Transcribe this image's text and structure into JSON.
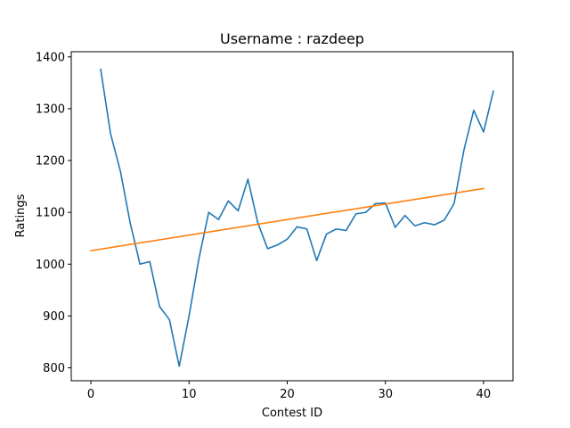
{
  "chart_data": {
    "type": "line",
    "title": "Username : razdeep",
    "xlabel": "Contest ID",
    "ylabel": "Ratings",
    "xlim": [
      -2,
      43
    ],
    "ylim": [
      775,
      1410
    ],
    "xticks": [
      0,
      10,
      20,
      30,
      40
    ],
    "yticks": [
      800,
      900,
      1000,
      1100,
      1200,
      1300,
      1400
    ],
    "grid": false,
    "series": [
      {
        "color": "#1f77b4",
        "x": [
          1,
          2,
          3,
          4,
          5,
          6,
          7,
          8,
          9,
          10,
          11,
          12,
          13,
          14,
          15,
          16,
          17,
          18,
          19,
          20,
          21,
          22,
          23,
          24,
          25,
          26,
          27,
          28,
          29,
          30,
          31,
          32,
          33,
          34,
          35,
          36,
          37,
          38,
          39,
          40,
          41
        ],
        "y": [
          1376,
          1252,
          1180,
          1080,
          1000,
          1005,
          918,
          893,
          803,
          900,
          1010,
          1100,
          1086,
          1122,
          1103,
          1164,
          1080,
          1030,
          1037,
          1048,
          1072,
          1068,
          1007,
          1058,
          1068,
          1065,
          1097,
          1100,
          1117,
          1118,
          1071,
          1094,
          1074,
          1080,
          1076,
          1085,
          1117,
          1220,
          1297,
          1255,
          1334
        ]
      },
      {
        "color": "#ff7f0e",
        "x": [
          0,
          40
        ],
        "y": [
          1026,
          1146
        ]
      }
    ]
  }
}
